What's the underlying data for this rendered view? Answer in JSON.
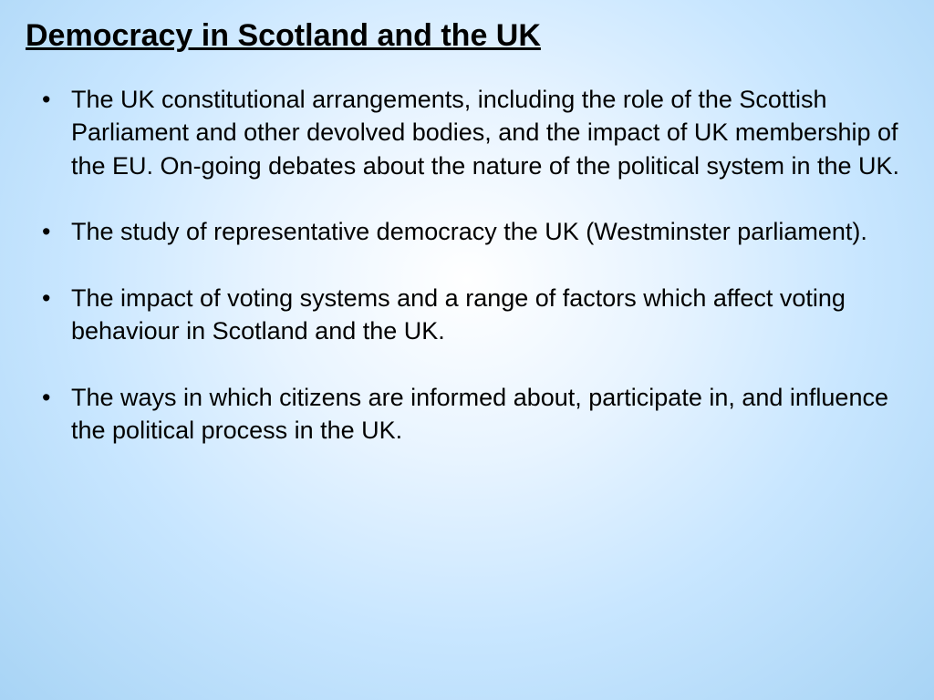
{
  "slide": {
    "title": "Democracy in Scotland and the UK",
    "bullets": [
      "The UK constitutional arrangements, including the role of the Scottish Parliament and other devolved bodies, and the impact of UK membership of the EU. On-going debates about the nature of the political system in the UK.",
      "The study of representative democracy the UK (Westminster parliament).",
      "The impact of voting systems and a range of factors which affect voting behaviour in Scotland and the UK.",
      "The ways in which citizens are informed about, participate in, and influence the political process in the UK."
    ]
  },
  "style": {
    "background_gradient_inner": "#ffffff",
    "background_gradient_mid": "#c8e6ff",
    "background_gradient_outer": "#a8d4f5",
    "font_family": "Comic Sans MS",
    "text_color": "#000000",
    "title_fontsize": 34,
    "title_weight": "bold",
    "title_underline": true,
    "bullet_fontsize": 27,
    "bullet_line_height": 1.35,
    "bullet_spacing": 36,
    "bullet_indent": 32,
    "slide_padding_x": 28,
    "slide_padding_y": 20
  }
}
